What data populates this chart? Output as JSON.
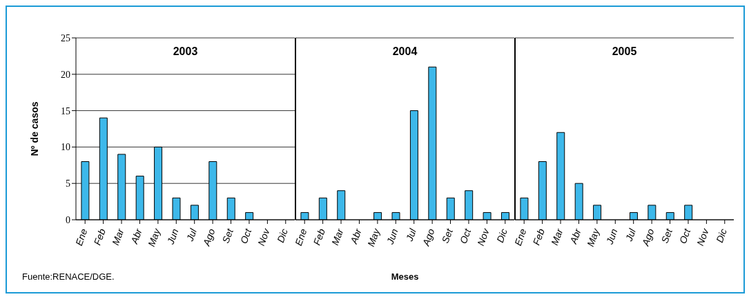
{
  "chart_data": [
    {
      "type": "bar",
      "title": "2003",
      "ylabel": "Nº de casos",
      "categories": [
        "Ene",
        "Feb",
        "Mar",
        "Abr",
        "May",
        "Jun",
        "Jul",
        "Ago",
        "Set",
        "Oct",
        "Nov",
        "Dic"
      ],
      "values": [
        8,
        14,
        9,
        6,
        10,
        3,
        2,
        8,
        3,
        1,
        0,
        0
      ],
      "color": "#3db8ea",
      "ylim": [
        0,
        25
      ],
      "yticks": [
        0,
        5,
        10,
        15,
        20,
        25
      ],
      "grid": "y",
      "annotations": [
        "Fuente:RENACE/DGE."
      ]
    },
    {
      "type": "bar",
      "title": "2004",
      "xlabel": "Meses",
      "categories": [
        "Ene",
        "Feb",
        "Mar",
        "Abr",
        "May",
        "Jun",
        "Jul",
        "Ago",
        "Set",
        "Oct",
        "Nov",
        "Dic"
      ],
      "values": [
        1,
        3,
        4,
        0,
        1,
        1,
        15,
        21,
        3,
        4,
        1,
        1
      ],
      "color": "#3db8ea",
      "ylim": [
        0,
        25
      ],
      "yticks": [
        0,
        5,
        10,
        15,
        20,
        25
      ],
      "grid": "y",
      "tick_labels": "x"
    },
    {
      "type": "bar",
      "title": "2005",
      "categories": [
        "Ene",
        "Feb",
        "Mar",
        "Abr",
        "May",
        "Jun",
        "Jul",
        "Ago",
        "Set",
        "Oct",
        "Nov",
        "Dic"
      ],
      "values": [
        3,
        8,
        12,
        5,
        2,
        0,
        1,
        2,
        1,
        2,
        0,
        0
      ],
      "color": "#3db8ea",
      "ylim": [
        0,
        25
      ],
      "yticks": [
        0,
        5,
        10,
        15,
        20,
        25
      ],
      "grid": "y",
      "tick_labels": "x"
    }
  ]
}
